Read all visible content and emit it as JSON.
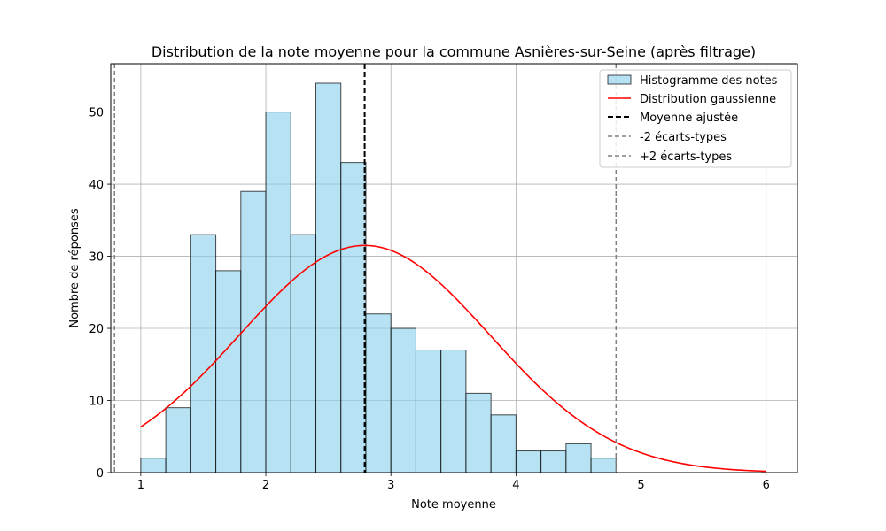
{
  "chart_data": {
    "type": "bar",
    "title": "Distribution de la note moyenne pour la commune Asnières-sur-Seine (après filtrage)",
    "xlabel": "Note moyenne",
    "ylabel": "Nombre de réponses",
    "xlim": [
      0.76,
      6.25
    ],
    "ylim": [
      0,
      56.7
    ],
    "x_ticks": [
      1,
      2,
      3,
      4,
      5,
      6
    ],
    "y_ticks": [
      0,
      10,
      20,
      30,
      40,
      50
    ],
    "grid": true,
    "legend_position": "top-right",
    "histogram": {
      "name": "Histogramme des notes",
      "bin_edges": [
        1.0,
        1.2,
        1.4,
        1.6,
        1.8,
        2.0,
        2.2,
        2.4,
        2.6,
        2.8,
        3.0,
        3.2,
        3.4,
        3.6,
        3.8,
        4.0,
        4.2,
        4.4,
        4.6,
        4.8
      ],
      "counts": [
        2,
        9,
        33,
        28,
        39,
        50,
        33,
        54,
        43,
        22,
        20,
        17,
        17,
        11,
        8,
        3,
        3,
        4,
        2
      ],
      "fill_color": "#87ceeb",
      "edge_color": "#000000"
    },
    "gaussian": {
      "name": "Distribution gaussienne",
      "mean": 2.79,
      "std": 1.0,
      "peak": 31.5,
      "x_range": [
        1,
        6
      ],
      "color": "#ff0000"
    },
    "mean_line": {
      "name": "Moyenne ajustée",
      "x": 2.79,
      "color": "#000000"
    },
    "minus_2sd_line": {
      "name": "-2 écarts-types",
      "x": 0.79,
      "color": "#808080"
    },
    "plus_2sd_line": {
      "name": "+2 écarts-types",
      "x": 4.8,
      "color": "#808080"
    }
  }
}
